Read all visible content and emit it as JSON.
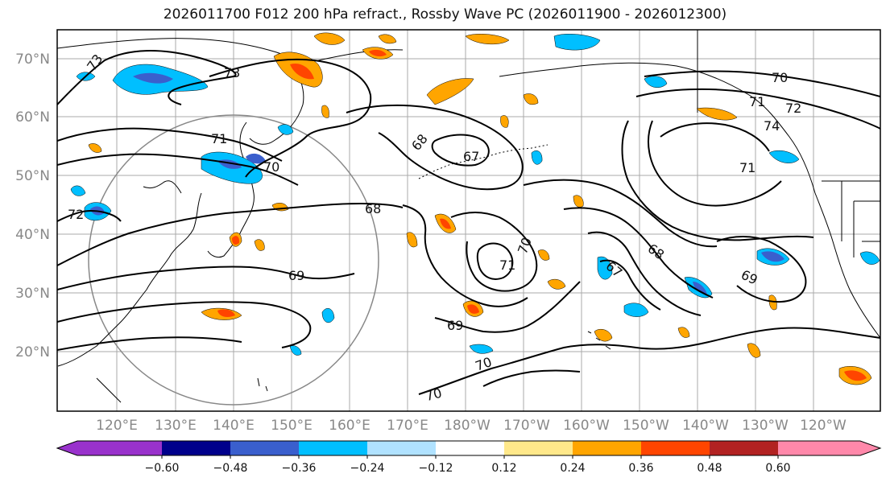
{
  "title": "2026011700 F012 200 hPa refract., Rossby Wave PC (2026011900 - 2026012300)",
  "lat_labels": [
    "70°N",
    "60°N",
    "50°N",
    "40°N",
    "30°N",
    "20°N"
  ],
  "lon_labels": [
    "120°E",
    "130°E",
    "140°E",
    "150°E",
    "160°E",
    "170°E",
    "180°W",
    "170°W",
    "160°W",
    "150°W",
    "140°W",
    "130°W",
    "120°W"
  ],
  "contour_labels": [
    "73",
    "73",
    "71",
    "70",
    "72",
    "68",
    "67",
    "68",
    "69",
    "71",
    "70",
    "69",
    "70",
    "70",
    "67",
    "68",
    "69",
    "70",
    "74",
    "71",
    "72",
    "71"
  ],
  "colorbar": {
    "ticks": [
      "−0.60",
      "−0.48",
      "−0.36",
      "−0.24",
      "−0.12",
      "0.12",
      "0.24",
      "0.36",
      "0.48",
      "0.60"
    ],
    "colors": [
      "#9932cc",
      "#00008b",
      "#3a5fcd",
      "#00bfff",
      "#b0e2ff",
      "#ffffff",
      "#ffe88a",
      "#ffa500",
      "#ff4500",
      "#b22222",
      "#ff88aa"
    ]
  },
  "shading_colors": {
    "neg_light": "#00bfff",
    "neg_mid": "#3a5fcd",
    "pos_light": "#ffa500",
    "pos_mid": "#ff4500",
    "pos_pale": "#ffe88a"
  }
}
